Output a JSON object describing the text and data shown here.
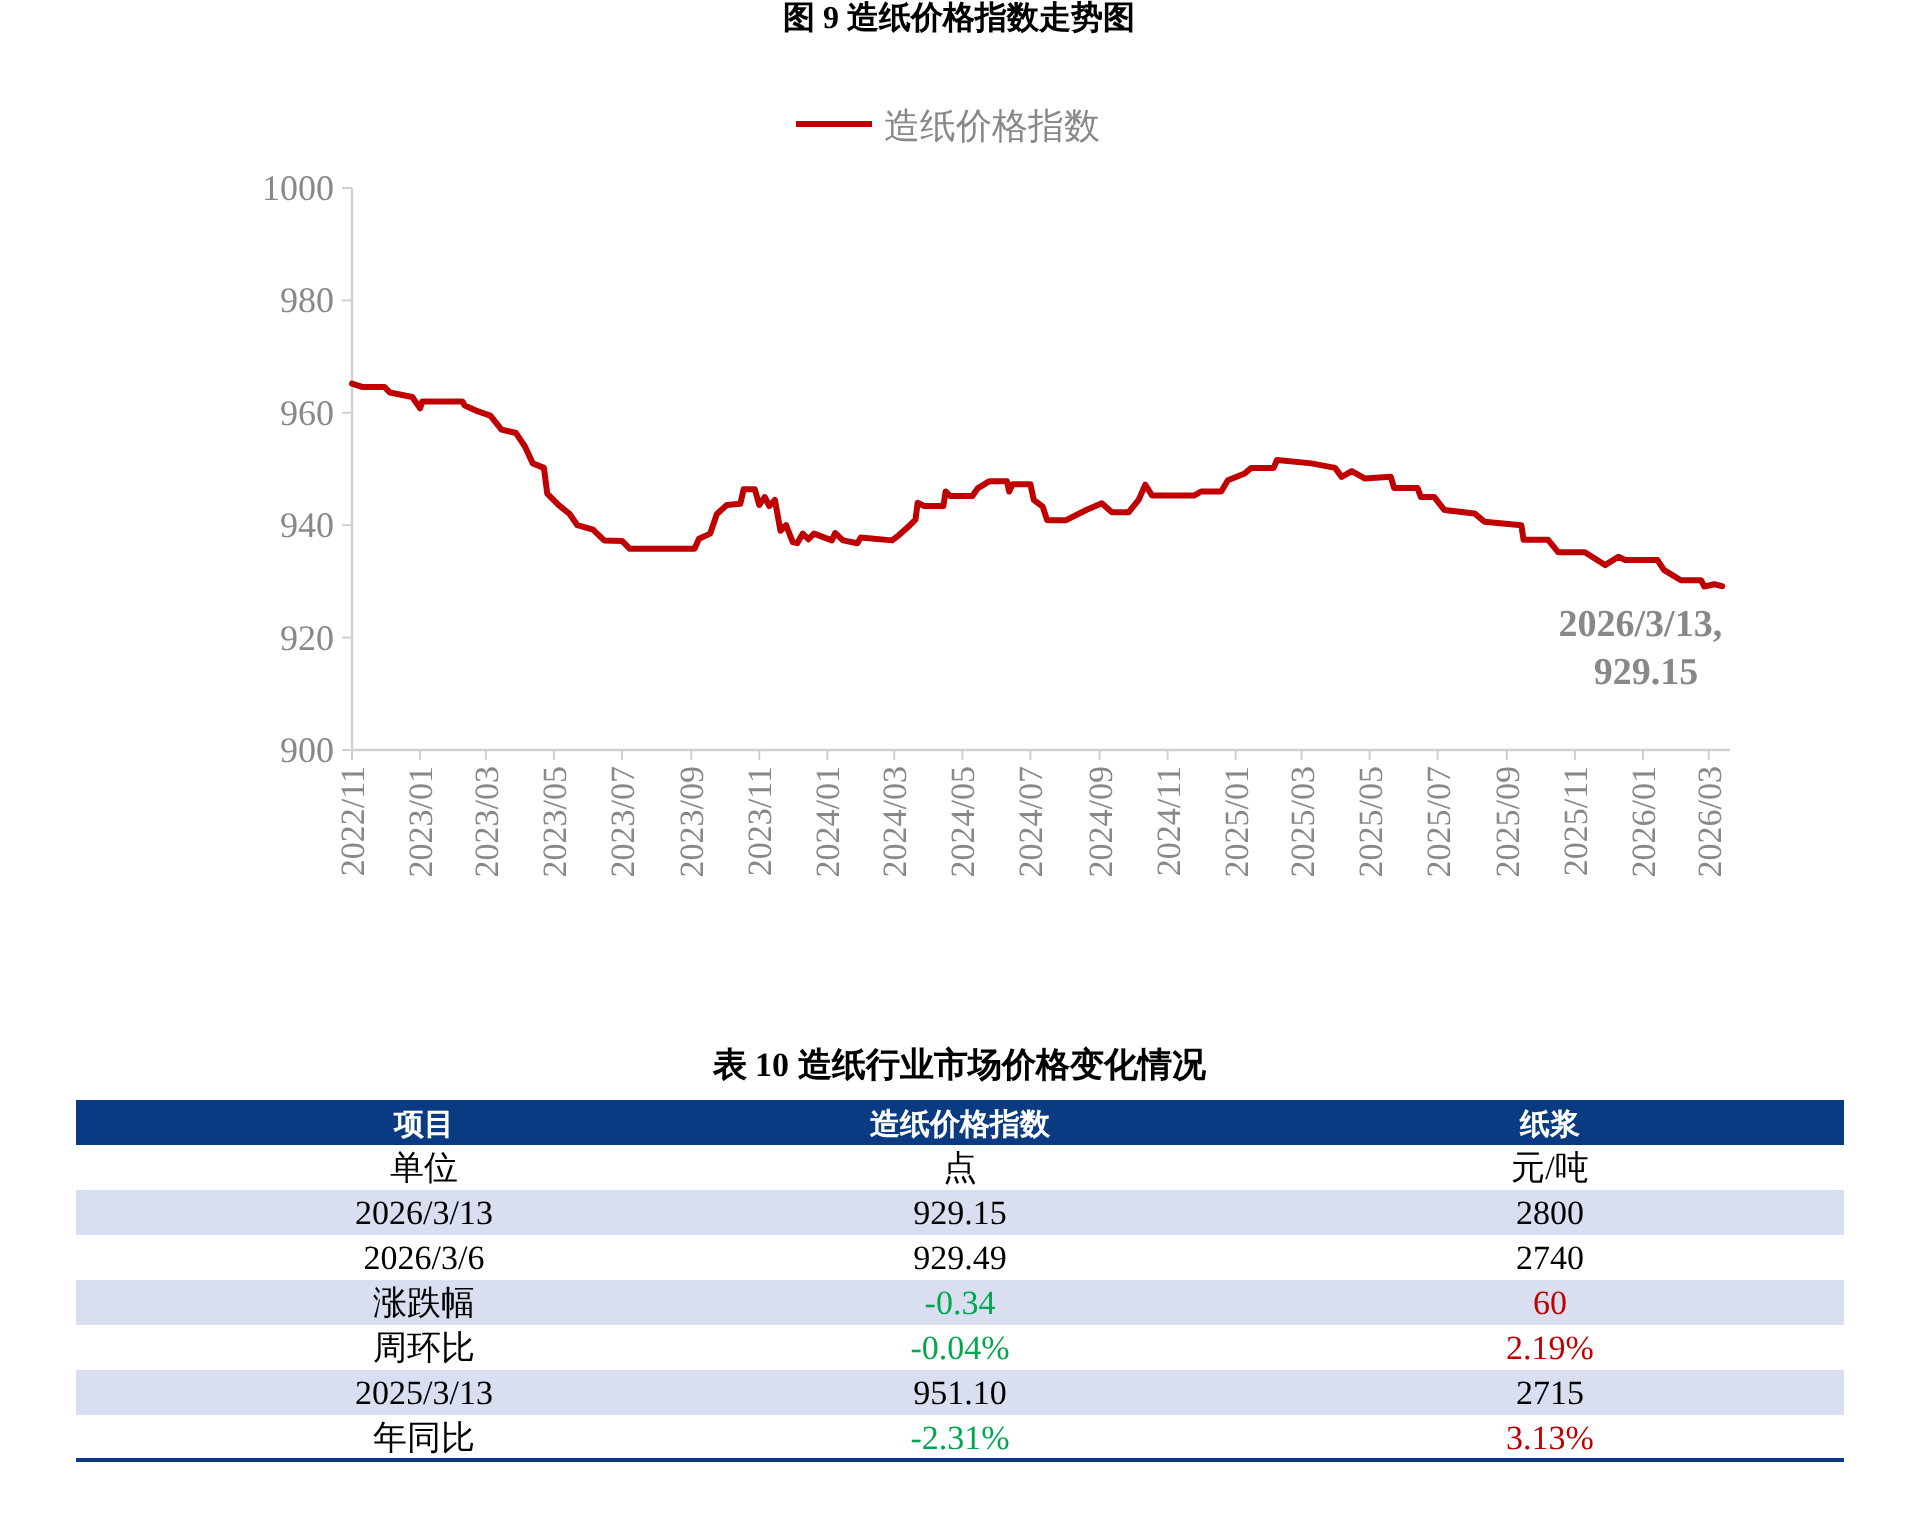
{
  "chart_data": [
    {
      "type": "line",
      "title": "图 9 造纸价格指数走势图",
      "legend": "top",
      "grid": false,
      "marker": "none",
      "line_style": "solid",
      "series": [
        {
          "name": "造纸价格指数",
          "color": "#c00000",
          "x": [
            "2022-11-01",
            "2022-11-10",
            "2022-11-30",
            "2022-12-05",
            "2022-12-25",
            "2023-01-01",
            "2023-01-03",
            "2023-02-08",
            "2023-02-10",
            "2023-02-20",
            "2023-03-05",
            "2023-03-15",
            "2023-03-28",
            "2023-04-05",
            "2023-04-12",
            "2023-04-22",
            "2023-04-25",
            "2023-05-05",
            "2023-05-15",
            "2023-05-22",
            "2023-06-05",
            "2023-06-15",
            "2023-07-01",
            "2023-07-08",
            "2023-09-04",
            "2023-09-08",
            "2023-09-18",
            "2023-09-24",
            "2023-10-03",
            "2023-10-15",
            "2023-10-18",
            "2023-10-28",
            "2023-11-01",
            "2023-11-06",
            "2023-11-10",
            "2023-11-15",
            "2023-11-20",
            "2023-11-25",
            "2023-12-01",
            "2023-12-05",
            "2023-12-10",
            "2023-12-15",
            "2023-12-20",
            "2024-01-05",
            "2024-01-08",
            "2024-01-15",
            "2024-01-28",
            "2024-01-31",
            "2024-02-28",
            "2024-03-05",
            "2024-03-15",
            "2024-03-20",
            "2024-03-22",
            "2024-03-28",
            "2024-04-14",
            "2024-04-16",
            "2024-04-20",
            "2024-05-10",
            "2024-05-15",
            "2024-05-25",
            "2024-06-10",
            "2024-06-12",
            "2024-06-15",
            "2024-07-01",
            "2024-07-04",
            "2024-07-12",
            "2024-07-16",
            "2024-08-02",
            "2024-08-20",
            "2024-09-03",
            "2024-09-12",
            "2024-09-27",
            "2024-10-06",
            "2024-10-12",
            "2024-10-18",
            "2024-11-25",
            "2024-12-01",
            "2024-12-19",
            "2024-12-25",
            "2025-01-09",
            "2025-01-15",
            "2025-02-04",
            "2025-02-07",
            "2025-03-10",
            "2025-03-31",
            "2025-04-06",
            "2025-04-15",
            "2025-04-27",
            "2025-05-20",
            "2025-05-23",
            "2025-06-13",
            "2025-06-16",
            "2025-06-28",
            "2025-07-07",
            "2025-08-03",
            "2025-08-12",
            "2025-09-14",
            "2025-09-16",
            "2025-10-08",
            "2025-10-17",
            "2025-11-10",
            "2025-11-28",
            "2025-12-10",
            "2025-12-16",
            "2026-01-14",
            "2026-01-20",
            "2026-02-04",
            "2026-02-22",
            "2026-02-25",
            "2026-03-06",
            "2026-03-13"
          ],
          "values": [
            965.2,
            964.6,
            964.6,
            963.6,
            962.8,
            960.8,
            962,
            962,
            961.3,
            960.4,
            959.5,
            957,
            956.4,
            954,
            951,
            950.2,
            945.6,
            943.6,
            942,
            940,
            939.2,
            937.3,
            937.2,
            935.8,
            935.8,
            937.6,
            938.5,
            942,
            943.6,
            943.8,
            946.4,
            946.4,
            943.6,
            945,
            943.4,
            944.5,
            939,
            940,
            937,
            936.8,
            938.5,
            937.5,
            938.5,
            937.3,
            938.6,
            937.3,
            936.8,
            937.8,
            937.3,
            938.2,
            940,
            941,
            944,
            943.4,
            943.4,
            946,
            945.2,
            945.2,
            946.6,
            947.8,
            947.8,
            946,
            947.3,
            947.3,
            944.5,
            943.3,
            940.9,
            940.9,
            942.7,
            943.9,
            942.3,
            942.3,
            944.5,
            947.2,
            945.3,
            945.3,
            946,
            946,
            948,
            949.2,
            950.2,
            950.2,
            951.6,
            951,
            950.2,
            948.6,
            949.6,
            948.3,
            948.6,
            946.6,
            946.6,
            945,
            945,
            942.7,
            942.1,
            940.6,
            940,
            937.4,
            937.4,
            935.2,
            935.2,
            932.9,
            934.4,
            933.8,
            933.8,
            932,
            930.2,
            930.2,
            929.1,
            929.49,
            929.15
          ]
        }
      ],
      "xlim": [
        "2022-11-01",
        "2026-03-20"
      ],
      "xticks": [
        {
          "value": "2022-11-01",
          "label": "2022/11"
        },
        {
          "value": "2023-01-01",
          "label": "2023/01"
        },
        {
          "value": "2023-03-01",
          "label": "2023/03"
        },
        {
          "value": "2023-05-01",
          "label": "2023/05"
        },
        {
          "value": "2023-07-01",
          "label": "2023/07"
        },
        {
          "value": "2023-09-01",
          "label": "2023/09"
        },
        {
          "value": "2023-11-01",
          "label": "2023/11"
        },
        {
          "value": "2024-01-01",
          "label": "2024/01"
        },
        {
          "value": "2024-03-01",
          "label": "2024/03"
        },
        {
          "value": "2024-05-01",
          "label": "2024/05"
        },
        {
          "value": "2024-07-01",
          "label": "2024/07"
        },
        {
          "value": "2024-09-01",
          "label": "2024/09"
        },
        {
          "value": "2024-11-01",
          "label": "2024/11"
        },
        {
          "value": "2025-01-01",
          "label": "2025/01"
        },
        {
          "value": "2025-03-01",
          "label": "2025/03"
        },
        {
          "value": "2025-05-01",
          "label": "2025/05"
        },
        {
          "value": "2025-07-01",
          "label": "2025/07"
        },
        {
          "value": "2025-09-01",
          "label": "2025/09"
        },
        {
          "value": "2025-11-01",
          "label": "2025/11"
        },
        {
          "value": "2026-01-01",
          "label": "2026/01"
        },
        {
          "value": "2026-03-01",
          "label": "2026/03"
        }
      ],
      "ylim": [
        900,
        1000
      ],
      "yticks": [
        900,
        920,
        940,
        960,
        980,
        1000
      ],
      "annotations": [
        {
          "text": "2026/3/13,\n929.15",
          "x": "2026-03-13",
          "y": 929.15
        }
      ]
    },
    {
      "type": "other",
      "title": "表 10 造纸行业市场价格变化情况",
      "categories": [
        "项目",
        "造纸价格指数",
        "纸浆"
      ],
      "y_categories": [
        "单位",
        "2026/3/13",
        "2026/3/6",
        "涨跌幅",
        "周环比",
        "2025/3/13",
        "年同比"
      ],
      "cell_labels": [
        [
          "点",
          "元/吨"
        ],
        [
          "929.15",
          "2800"
        ],
        [
          "929.49",
          "2740"
        ],
        [
          "-0.34",
          "60"
        ],
        [
          "-0.04%",
          "2.19%"
        ],
        [
          "951.10",
          "2715"
        ],
        [
          "-2.31%",
          "3.13%"
        ]
      ]
    }
  ]
}
